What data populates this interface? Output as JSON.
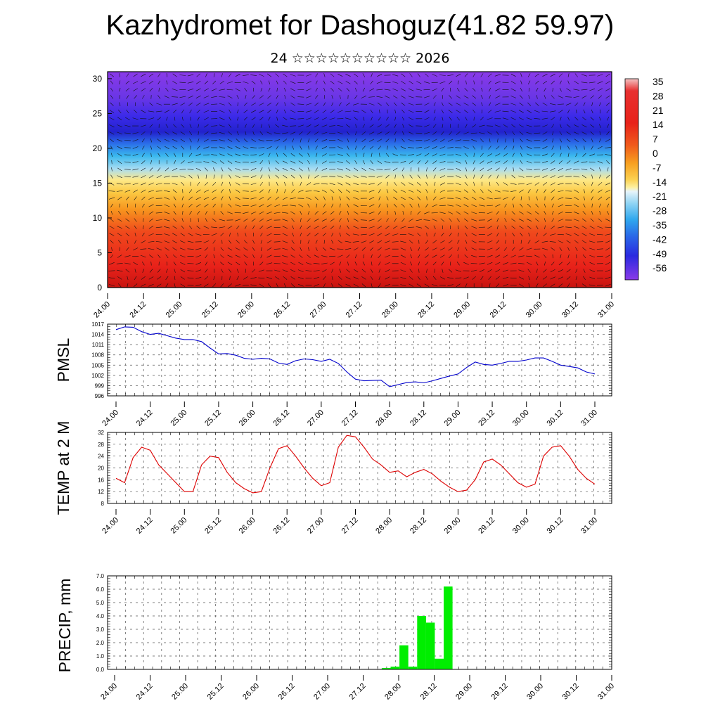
{
  "title": "Kazhydromet for Dashoguz(41.82 59.97)",
  "subtitle": "24 ☆☆☆☆☆☆☆☆☆☆ 2026",
  "chart_data": [
    {
      "type": "heatmap",
      "name": "vertical cross-section (temperature with wind vectors)",
      "y_ticks": [
        "0",
        "5",
        "10",
        "15",
        "20",
        "25",
        "30"
      ],
      "ylim": [
        0,
        31
      ],
      "x_ticks": [
        "24.00",
        "24.12",
        "25.00",
        "25.12",
        "26.00",
        "26.12",
        "27.00",
        "27.12",
        "28.00",
        "28.12",
        "29.00",
        "29.12",
        "30.00",
        "30.12",
        "31.00"
      ],
      "colorbar_labels": [
        "35",
        "28",
        "21",
        "14",
        "7",
        "0",
        "-7",
        "-14",
        "-21",
        "-28",
        "-35",
        "-42",
        "-49",
        "-56"
      ],
      "colors": {
        "warm": "#e8221a",
        "orange": "#f7a020",
        "yellow": "#fde98a",
        "cyan": "#3ab8ee",
        "blue": "#2a2ae8",
        "purple": "#8a3ae8"
      }
    },
    {
      "type": "line",
      "ylabel": "PMSL",
      "y_ticks": [
        996,
        999,
        1002,
        1005,
        1008,
        1011,
        1014,
        1017
      ],
      "ylim": [
        996,
        1017
      ],
      "x_ticks": [
        "24.00",
        "24.12",
        "25.00",
        "25.12",
        "26.00",
        "26.12",
        "27.00",
        "27.12",
        "28.00",
        "28.12",
        "29.00",
        "29.12",
        "30.00",
        "30.12",
        "31.00"
      ],
      "line_color": "#0000cc",
      "series": [
        {
          "values": [
            1015.4,
            1016.2,
            1016.1,
            1014.8,
            1014.0,
            1014.3,
            1013.6,
            1012.9,
            1012.5,
            1012.5,
            1011.9,
            1010.0,
            1008.3,
            1008.4,
            1007.9,
            1007.0,
            1006.7,
            1007.0,
            1006.8,
            1005.6,
            1005.2,
            1006.3,
            1006.8,
            1006.6,
            1006.1,
            1006.7,
            1005.5,
            1003.0,
            1000.9,
            1000.4,
            1000.5,
            1000.6,
            998.7,
            999.3,
            999.9,
            1000.1,
            999.8,
            1000.4,
            1001.1,
            1001.8,
            1002.4,
            1004.3,
            1005.9,
            1005.2,
            1005.0,
            1005.5,
            1006.1,
            1006.1,
            1006.5,
            1007.1,
            1007.1,
            1006.1,
            1005.0,
            1004.6,
            1004.2,
            1003.0,
            1002.4
          ]
        }
      ]
    },
    {
      "type": "line",
      "ylabel": "TEMP at 2 M",
      "y_ticks": [
        8,
        12,
        16,
        20,
        24,
        28,
        32
      ],
      "ylim": [
        8,
        32
      ],
      "x_ticks": [
        "24.00",
        "24.12",
        "25.00",
        "25.12",
        "26.00",
        "26.12",
        "27.00",
        "27.12",
        "28.00",
        "28.12",
        "29.00",
        "29.12",
        "30.00",
        "30.12",
        "31.00"
      ],
      "line_color": "#dd0000",
      "series": [
        {
          "values": [
            16.5,
            15.0,
            23.5,
            27.0,
            26.0,
            21.0,
            18.0,
            15.0,
            12.0,
            12.0,
            21.0,
            24.0,
            23.5,
            18.5,
            15.0,
            13.0,
            11.6,
            12.0,
            20.0,
            26.5,
            27.5,
            24.0,
            20.0,
            16.5,
            14.0,
            15.0,
            27.0,
            31.0,
            30.5,
            27.0,
            23.0,
            21.0,
            18.5,
            19.0,
            17.0,
            18.5,
            19.5,
            18.0,
            15.5,
            13.5,
            12.0,
            12.5,
            16.0,
            22.0,
            23.0,
            21.0,
            18.0,
            15.0,
            13.5,
            14.5,
            24.0,
            27.0,
            27.5,
            24.0,
            19.5,
            16.5,
            14.5
          ]
        }
      ]
    },
    {
      "type": "bar",
      "ylabel": "PRECIP, mm",
      "y_ticks": [
        "0.0",
        "1.0",
        "2.0",
        "3.0",
        "4.0",
        "5.0",
        "6.0",
        "7.0"
      ],
      "ylim": [
        0,
        7
      ],
      "x_ticks": [
        "24.00",
        "24.12",
        "25.00",
        "25.12",
        "26.00",
        "26.12",
        "27.00",
        "27.12",
        "28.00",
        "28.12",
        "29.00",
        "29.12",
        "30.00",
        "30.12",
        "31.00"
      ],
      "bar_color": "#00ee00",
      "values": [
        0,
        0,
        0,
        0,
        0,
        0,
        0,
        0,
        0,
        0,
        0,
        0,
        0,
        0,
        0,
        0,
        0,
        0,
        0,
        0,
        0,
        0,
        0,
        0,
        0,
        0,
        0,
        0,
        0,
        0,
        0,
        0.1,
        0.2,
        1.8,
        0.2,
        4.0,
        3.5,
        0.8,
        6.2,
        0,
        0,
        0,
        0,
        0,
        0,
        0,
        0,
        0,
        0,
        0,
        0,
        0,
        0,
        0,
        0,
        0,
        0
      ]
    }
  ]
}
